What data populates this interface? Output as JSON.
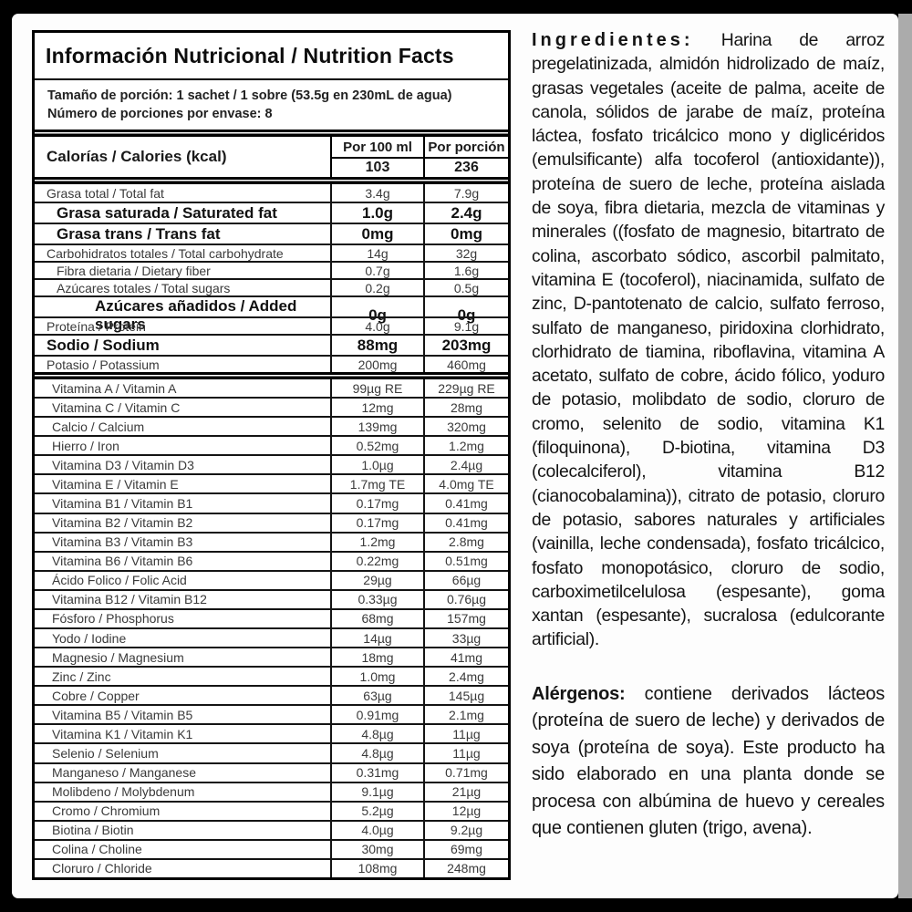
{
  "colors": {
    "frame": "#000000",
    "sheet": "#fdfdfd",
    "gray_strip": "#ababab",
    "text": "#141414"
  },
  "table": {
    "title": "Información Nutricional / Nutrition Facts",
    "serving_size": "Tamaño de porción: 1 sachet / 1 sobre (53.5g en 230mL de agua)",
    "servings_per_container": "Número de porciones por envase: 8",
    "calories": {
      "label": "Calorías / Calories (kcal)",
      "col_per_100ml": "Por 100 ml",
      "col_per_portion": "Por porción",
      "per_100ml": "103",
      "per_portion": "236"
    },
    "nutrients": [
      {
        "label": "Grasa total / Total fat",
        "per_100ml": "3.4g",
        "per_portion": "7.9g",
        "bold": false,
        "indent": 0
      },
      {
        "label": "Grasa saturada / Saturated fat",
        "per_100ml": "1.0g",
        "per_portion": "2.4g",
        "bold": true,
        "indent": 1
      },
      {
        "label": "Grasa trans / Trans fat",
        "per_100ml": "0mg",
        "per_portion": "0mg",
        "bold": true,
        "indent": 1
      },
      {
        "label": "Carbohidratos totales / Total carbohydrate",
        "per_100ml": "14g",
        "per_portion": "32g",
        "bold": false,
        "indent": 0
      },
      {
        "label": "Fibra dietaria / Dietary fiber",
        "per_100ml": "0.7g",
        "per_portion": "1.6g",
        "bold": false,
        "indent": 1
      },
      {
        "label": "Azúcares totales / Total sugars",
        "per_100ml": "0.2g",
        "per_portion": "0.5g",
        "bold": false,
        "indent": 1
      },
      {
        "label": "Azúcares añadidos / Added sugars",
        "per_100ml": "0g",
        "per_portion": "0g",
        "bold": true,
        "indent": 2
      },
      {
        "label": "Proteína / Protein",
        "per_100ml": "4.0g",
        "per_portion": "9.1g",
        "bold": false,
        "indent": 0
      },
      {
        "label": "Sodio / Sodium",
        "per_100ml": "88mg",
        "per_portion": "203mg",
        "bold": true,
        "indent": 0
      },
      {
        "label": "Potasio / Potassium",
        "per_100ml": "200mg",
        "per_portion": "460mg",
        "bold": false,
        "indent": 0
      }
    ],
    "vitamins_minerals": [
      {
        "label": "Vitamina A / Vitamin A",
        "per_100ml": "99µg RE",
        "per_portion": "229µg RE"
      },
      {
        "label": "Vitamina C / Vitamin C",
        "per_100ml": "12mg",
        "per_portion": "28mg"
      },
      {
        "label": "Calcio / Calcium",
        "per_100ml": "139mg",
        "per_portion": "320mg"
      },
      {
        "label": "Hierro / Iron",
        "per_100ml": "0.52mg",
        "per_portion": "1.2mg"
      },
      {
        "label": "Vitamina D3 / Vitamin D3",
        "per_100ml": "1.0µg",
        "per_portion": "2.4µg"
      },
      {
        "label": "Vitamina E / Vitamin E",
        "per_100ml": "1.7mg TE",
        "per_portion": "4.0mg TE"
      },
      {
        "label": "Vitamina B1 / Vitamin B1",
        "per_100ml": "0.17mg",
        "per_portion": "0.41mg"
      },
      {
        "label": "Vitamina B2 / Vitamin B2",
        "per_100ml": "0.17mg",
        "per_portion": "0.41mg"
      },
      {
        "label": "Vitamina B3 / Vitamin B3",
        "per_100ml": "1.2mg",
        "per_portion": "2.8mg"
      },
      {
        "label": "Vitamina B6 / Vitamin B6",
        "per_100ml": "0.22mg",
        "per_portion": "0.51mg"
      },
      {
        "label": "Ácido Folico / Folic Acid",
        "per_100ml": "29µg",
        "per_portion": "66µg"
      },
      {
        "label": "Vitamina B12 / Vitamin B12",
        "per_100ml": "0.33µg",
        "per_portion": "0.76µg"
      },
      {
        "label": "Fósforo / Phosphorus",
        "per_100ml": "68mg",
        "per_portion": "157mg"
      },
      {
        "label": "Yodo / Iodine",
        "per_100ml": "14µg",
        "per_portion": "33µg"
      },
      {
        "label": "Magnesio / Magnesium",
        "per_100ml": "18mg",
        "per_portion": "41mg"
      },
      {
        "label": "Zinc / Zinc",
        "per_100ml": "1.0mg",
        "per_portion": "2.4mg"
      },
      {
        "label": "Cobre / Copper",
        "per_100ml": "63µg",
        "per_portion": "145µg"
      },
      {
        "label": "Vitamina B5 / Vitamin B5",
        "per_100ml": "0.91mg",
        "per_portion": "2.1mg"
      },
      {
        "label": "Vitamina K1 / Vitamin K1",
        "per_100ml": "4.8µg",
        "per_portion": "11µg"
      },
      {
        "label": "Selenio / Selenium",
        "per_100ml": "4.8µg",
        "per_portion": "11µg"
      },
      {
        "label": "Manganeso / Manganese",
        "per_100ml": "0.31mg",
        "per_portion": "0.71mg"
      },
      {
        "label": "Molibdeno / Molybdenum",
        "per_100ml": "9.1µg",
        "per_portion": "21µg"
      },
      {
        "label": "Cromo / Chromium",
        "per_100ml": "5.2µg",
        "per_portion": "12µg"
      },
      {
        "label": "Biotina / Biotin",
        "per_100ml": "4.0µg",
        "per_portion": "9.2µg"
      },
      {
        "label": "Colina / Choline",
        "per_100ml": "30mg",
        "per_portion": "69mg"
      },
      {
        "label": "Cloruro / Chloride",
        "per_100ml": "108mg",
        "per_portion": "248mg"
      }
    ]
  },
  "ingredients": {
    "heading": "Ingredientes:",
    "body": "Harina de arroz pregelatinizada, almidón hidrolizado de maíz, grasas vegetales (aceite de palma, aceite de canola, sólidos de jarabe de maíz, proteína láctea, fosfato tricálcico mono y diglicéridos (emulsificante) alfa tocoferol (antioxidante)), proteína de suero de leche, proteína aislada de soya, fibra dietaria, mezcla de vitaminas y minerales ((fosfato de magnesio, bitartrato de colina, ascorbato sódico, ascorbil palmitato, vitamina E (tocoferol), niacinamida, sulfato de zinc, D-pantotenato de calcio, sulfato ferroso, sulfato de manganeso, piridoxina clorhidrato, clorhidrato de tiamina, riboflavina, vitamina A acetato, sulfato de cobre, ácido fólico, yoduro de potasio, molibdato de sodio, cloruro de cromo, selenito de sodio, vitamina K1 (filoquinona), D-biotina, vitamina D3 (colecalciferol), vitamina B12 (cianocobalamina)), citrato de potasio, cloruro de potasio, sabores naturales y artificiales (vainilla, leche condensada), fosfato tricálcico, fosfato monopotásico, cloruro de sodio, carboximetilcelulosa (espesante), goma xantan (espesante), sucralosa (edulcorante artificial)."
  },
  "allergens": {
    "heading": "Alérgenos:",
    "body": " contiene derivados lácteos (proteína de suero de leche) y derivados de soya (proteína de soya). Este producto ha sido elaborado en una planta donde se procesa con albúmina de huevo y cereales que contienen gluten (trigo, avena)."
  }
}
